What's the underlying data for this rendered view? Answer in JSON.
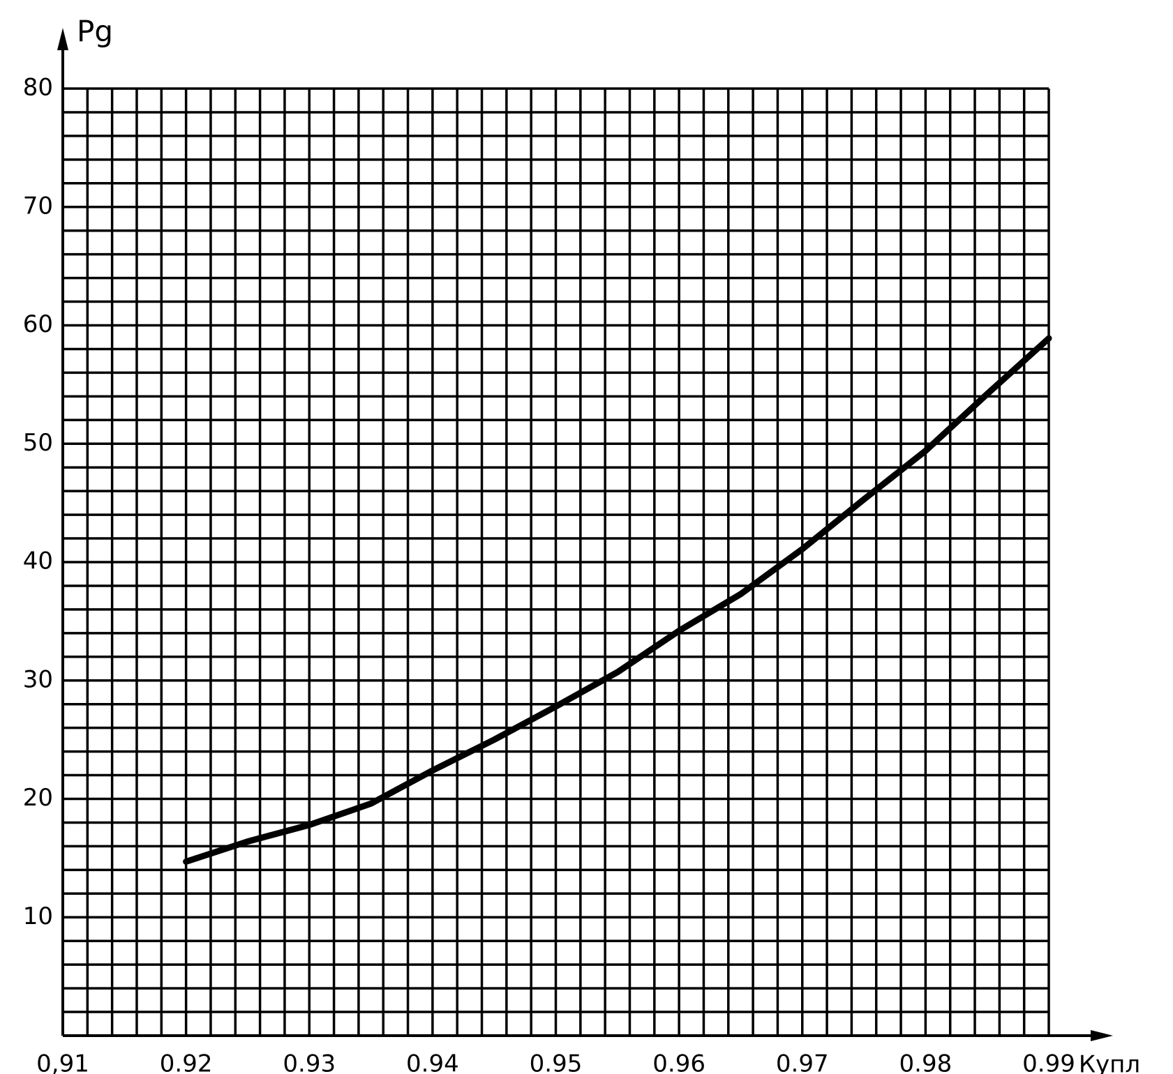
{
  "chart_data": {
    "type": "line",
    "x_label": "Купл",
    "y_label": "Pg",
    "xlim": [
      0.91,
      0.99
    ],
    "ylim": [
      0,
      80
    ],
    "xticks": [
      {
        "value": 0.91,
        "label": "0,91"
      },
      0.92,
      0.93,
      0.94,
      0.95,
      0.96,
      0.97,
      0.98,
      0.99
    ],
    "yticks": [
      10,
      20,
      30,
      40,
      50,
      60,
      70,
      80
    ],
    "grid": true,
    "x_grid": [
      0.91,
      0.912,
      0.914,
      0.916,
      0.918,
      0.92,
      0.922,
      0.924,
      0.926,
      0.928,
      0.93,
      0.932,
      0.934,
      0.936,
      0.938,
      0.94,
      0.942,
      0.944,
      0.946,
      0.948,
      0.95,
      0.952,
      0.954,
      0.956,
      0.958,
      0.96,
      0.962,
      0.964,
      0.966,
      0.968,
      0.97,
      0.972,
      0.974,
      0.976,
      0.978,
      0.98,
      0.982,
      0.984,
      0.986,
      0.988,
      0.99
    ],
    "y_grid": [
      0,
      2,
      4,
      6,
      8,
      10,
      12,
      14,
      16,
      18,
      20,
      22,
      24,
      26,
      28,
      30,
      32,
      34,
      36,
      38,
      40,
      42,
      44,
      46,
      48,
      50,
      52,
      54,
      56,
      58,
      60,
      62,
      64,
      66,
      68,
      70,
      72,
      74,
      76,
      78,
      80
    ],
    "x": [
      0.92,
      0.925,
      0.93,
      0.935,
      0.94,
      0.945,
      0.95,
      0.955,
      0.96,
      0.965,
      0.97,
      0.975,
      0.98,
      0.985,
      0.99
    ],
    "series": [
      {
        "color": "#000000",
        "values": [
          14.7,
          16.4,
          17.8,
          19.6,
          22.4,
          25,
          27.8,
          30.7,
          34.2,
          37.3,
          41.1,
          45.3,
          49.4,
          54.2,
          58.9
        ]
      }
    ]
  }
}
